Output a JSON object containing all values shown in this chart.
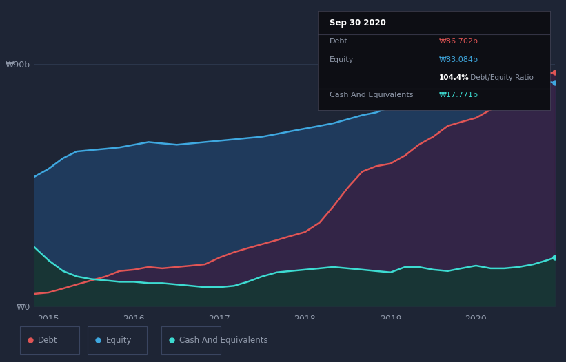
{
  "background_color": "#1e2535",
  "plot_bg_color": "#1e2535",
  "tooltip_bg": "#0d0e14",
  "y_label_90": "₩90b",
  "y_label_0": "₩0",
  "x_ticks": [
    "2015",
    "2016",
    "2017",
    "2018",
    "2019",
    "2020"
  ],
  "legend_items": [
    {
      "label": "Debt",
      "color": "#e05555"
    },
    {
      "label": "Equity",
      "color": "#3fa8e0"
    },
    {
      "label": "Cash And Equivalents",
      "color": "#3ddbd1"
    }
  ],
  "tooltip": {
    "date": "Sep 30 2020",
    "debt_label": "Debt",
    "debt_value": "₩86.702b",
    "debt_color": "#e05555",
    "equity_label": "Equity",
    "equity_value": "₩83.084b",
    "equity_color": "#3fa8e0",
    "ratio_bold": "104.4%",
    "ratio_rest": " Debt/Equity Ratio",
    "cash_label": "Cash And Equivalents",
    "cash_value": "₩17.771b",
    "cash_color": "#3ddbd1"
  },
  "debt_color": "#e05555",
  "equity_color": "#3fa8e0",
  "cash_color": "#3ddbd1",
  "equity_fill_color": "#1f3a5c",
  "debt_fill_color": "#3a1e40",
  "cash_fill_color": "#183535",
  "grid_color": "#2e3a50",
  "text_color": "#9099aa",
  "ylim_max": 95,
  "ylim_min": -2,
  "debt_x": [
    2014.83,
    2015.0,
    2015.17,
    2015.33,
    2015.5,
    2015.67,
    2015.83,
    2016.0,
    2016.17,
    2016.33,
    2016.5,
    2016.67,
    2016.83,
    2017.0,
    2017.17,
    2017.33,
    2017.5,
    2017.67,
    2017.83,
    2018.0,
    2018.17,
    2018.33,
    2018.5,
    2018.67,
    2018.83,
    2019.0,
    2019.17,
    2019.33,
    2019.5,
    2019.67,
    2019.83,
    2020.0,
    2020.17,
    2020.33,
    2020.5,
    2020.67,
    2020.83,
    2020.92
  ],
  "debt_y": [
    4.5,
    5.0,
    6.5,
    8.0,
    9.5,
    11.0,
    13.0,
    13.5,
    14.5,
    14.0,
    14.5,
    15.0,
    15.5,
    18.0,
    20.0,
    21.5,
    23.0,
    24.5,
    26.0,
    27.5,
    31.0,
    37.0,
    44.0,
    50.0,
    52.0,
    53.0,
    56.0,
    60.0,
    63.0,
    67.0,
    68.5,
    70.0,
    73.0,
    76.0,
    79.0,
    82.5,
    86.5,
    87.0
  ],
  "equity_x": [
    2014.83,
    2015.0,
    2015.17,
    2015.33,
    2015.5,
    2015.67,
    2015.83,
    2016.0,
    2016.17,
    2016.33,
    2016.5,
    2016.67,
    2016.83,
    2017.0,
    2017.17,
    2017.33,
    2017.5,
    2017.67,
    2017.83,
    2018.0,
    2018.17,
    2018.33,
    2018.5,
    2018.67,
    2018.83,
    2019.0,
    2019.17,
    2019.33,
    2019.5,
    2019.67,
    2019.83,
    2020.0,
    2020.17,
    2020.33,
    2020.5,
    2020.67,
    2020.83,
    2020.92
  ],
  "equity_y": [
    48.0,
    51.0,
    55.0,
    57.5,
    58.0,
    58.5,
    59.0,
    60.0,
    61.0,
    60.5,
    60.0,
    60.5,
    61.0,
    61.5,
    62.0,
    62.5,
    63.0,
    64.0,
    65.0,
    66.0,
    67.0,
    68.0,
    69.5,
    71.0,
    72.0,
    74.0,
    79.5,
    83.5,
    81.5,
    78.5,
    78.0,
    78.5,
    81.0,
    83.0,
    85.0,
    83.5,
    83.5,
    83.0
  ],
  "cash_x": [
    2014.83,
    2015.0,
    2015.17,
    2015.33,
    2015.5,
    2015.67,
    2015.83,
    2016.0,
    2016.17,
    2016.33,
    2016.5,
    2016.67,
    2016.83,
    2017.0,
    2017.17,
    2017.33,
    2017.5,
    2017.67,
    2017.83,
    2018.0,
    2018.17,
    2018.33,
    2018.5,
    2018.67,
    2018.83,
    2019.0,
    2019.17,
    2019.33,
    2019.5,
    2019.67,
    2019.83,
    2020.0,
    2020.17,
    2020.33,
    2020.5,
    2020.67,
    2020.83,
    2020.92
  ],
  "cash_y": [
    22.0,
    17.0,
    13.0,
    11.0,
    10.0,
    9.5,
    9.0,
    9.0,
    8.5,
    8.5,
    8.0,
    7.5,
    7.0,
    7.0,
    7.5,
    9.0,
    11.0,
    12.5,
    13.0,
    13.5,
    14.0,
    14.5,
    14.0,
    13.5,
    13.0,
    12.5,
    14.5,
    14.5,
    13.5,
    13.0,
    14.0,
    15.0,
    14.0,
    14.0,
    14.5,
    15.5,
    17.0,
    18.0
  ],
  "grid_yticks": [
    0,
    22.5,
    45,
    67.5,
    90
  ],
  "ytick_labels": [
    "₩0",
    "",
    "",
    "",
    "₩90b"
  ]
}
